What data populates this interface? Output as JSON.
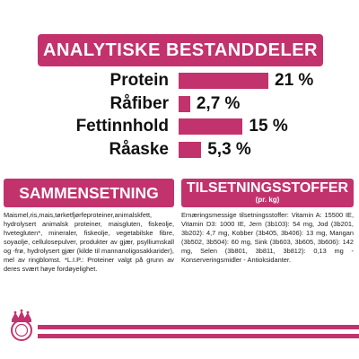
{
  "brand_color": "#c2336d",
  "title": "ANALYTISKE BESTANDDELER",
  "analysis": [
    {
      "label": "Protein",
      "value_text": "21 %",
      "value": 21
    },
    {
      "label": "Råfiber",
      "value_text": "2,7 %",
      "value": 2.7
    },
    {
      "label": "Fettinnhold",
      "value_text": "15 %",
      "value": 15
    },
    {
      "label": "Råaske",
      "value_text": "5,3 %",
      "value": 5.3
    }
  ],
  "composition": {
    "heading": "SAMMENSETNING",
    "text": "Maismel,ris,mais,tørketfjørfeproteiner,animalskfett, hydrolysert animalsk proteiner, maisgluten, fiskeolje, hvetegluten*, mineraler, fiskeolje, vegetabilske fibre, soyaolje, cellulosepulver, produkter av gjær, psylliumskall og -frø, hydrolysert gjær (kilde til mannanoligosakkarider), mel av ringblomst. *L.I.P.: Proteiner valgt på grunn av deres svært høye fordøyelighet."
  },
  "additives": {
    "heading": "TILSETNINGSSTOFFER",
    "subheading": "(pr. kg)",
    "text": "Ernæringsmessige tilsetningsstoffer: Vitamin A: 15500 IE, Vitamin D3: 1000 IE, Jern (3b103): 54 mg, Jod (3b201, 3b202): 4,7 mg, Kobber (3b405, 3b406): 13 mg, Mangan (3b502, 3b504): 60 mg, Sink (3b603, 3b605, 3b606): 142 mg, Selen (3b801, 3b811, 3b812): 0,13 mg - Konserveringsmidler - Antioksidanter."
  },
  "logo_icon": "royal-canin-crown-icon"
}
